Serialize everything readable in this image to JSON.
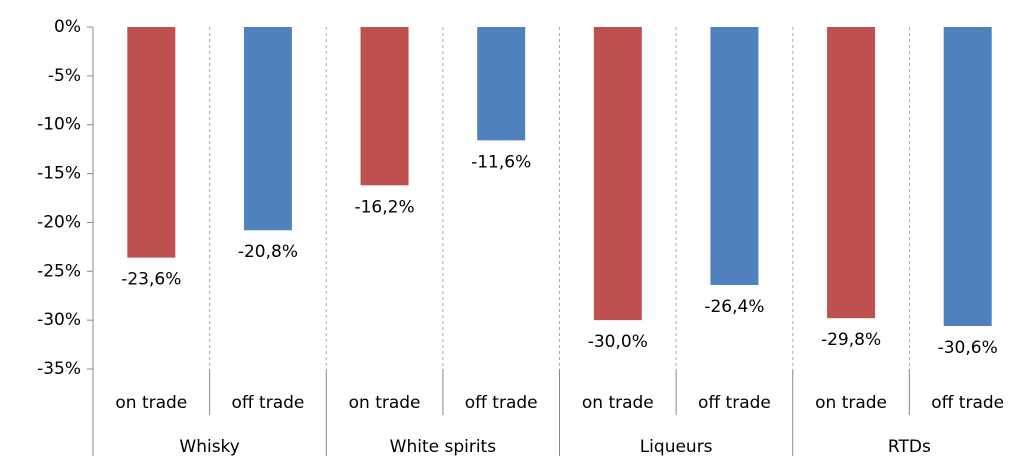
{
  "chart_data": {
    "type": "bar",
    "categories": [
      "Whisky",
      "White spirits",
      "Liqueurs",
      "RTDs"
    ],
    "series": [
      {
        "name": "on trade",
        "color": "#c0504d",
        "values": [
          -23.6,
          -16.2,
          -30.0,
          -29.8
        ],
        "value_labels": [
          "-23,6%",
          "-16,2%",
          "-30,0%",
          "-29,8%"
        ]
      },
      {
        "name": "off trade",
        "color": "#4f81bd",
        "values": [
          -20.8,
          -11.6,
          -26.4,
          -30.6
        ],
        "value_labels": [
          "-20,8%",
          "-11,6%",
          "-26,4%",
          "-30,6%"
        ]
      }
    ],
    "ylim": [
      -35,
      0
    ],
    "yticks": [
      {
        "value": 0,
        "label": "0%"
      },
      {
        "value": -5,
        "label": "-5%"
      },
      {
        "value": -10,
        "label": "-10%"
      },
      {
        "value": -15,
        "label": "-15%"
      },
      {
        "value": -20,
        "label": "-20%"
      },
      {
        "value": -25,
        "label": "-25%"
      },
      {
        "value": -30,
        "label": "-30%"
      },
      {
        "value": -35,
        "label": "-35%"
      }
    ],
    "grid": false
  }
}
